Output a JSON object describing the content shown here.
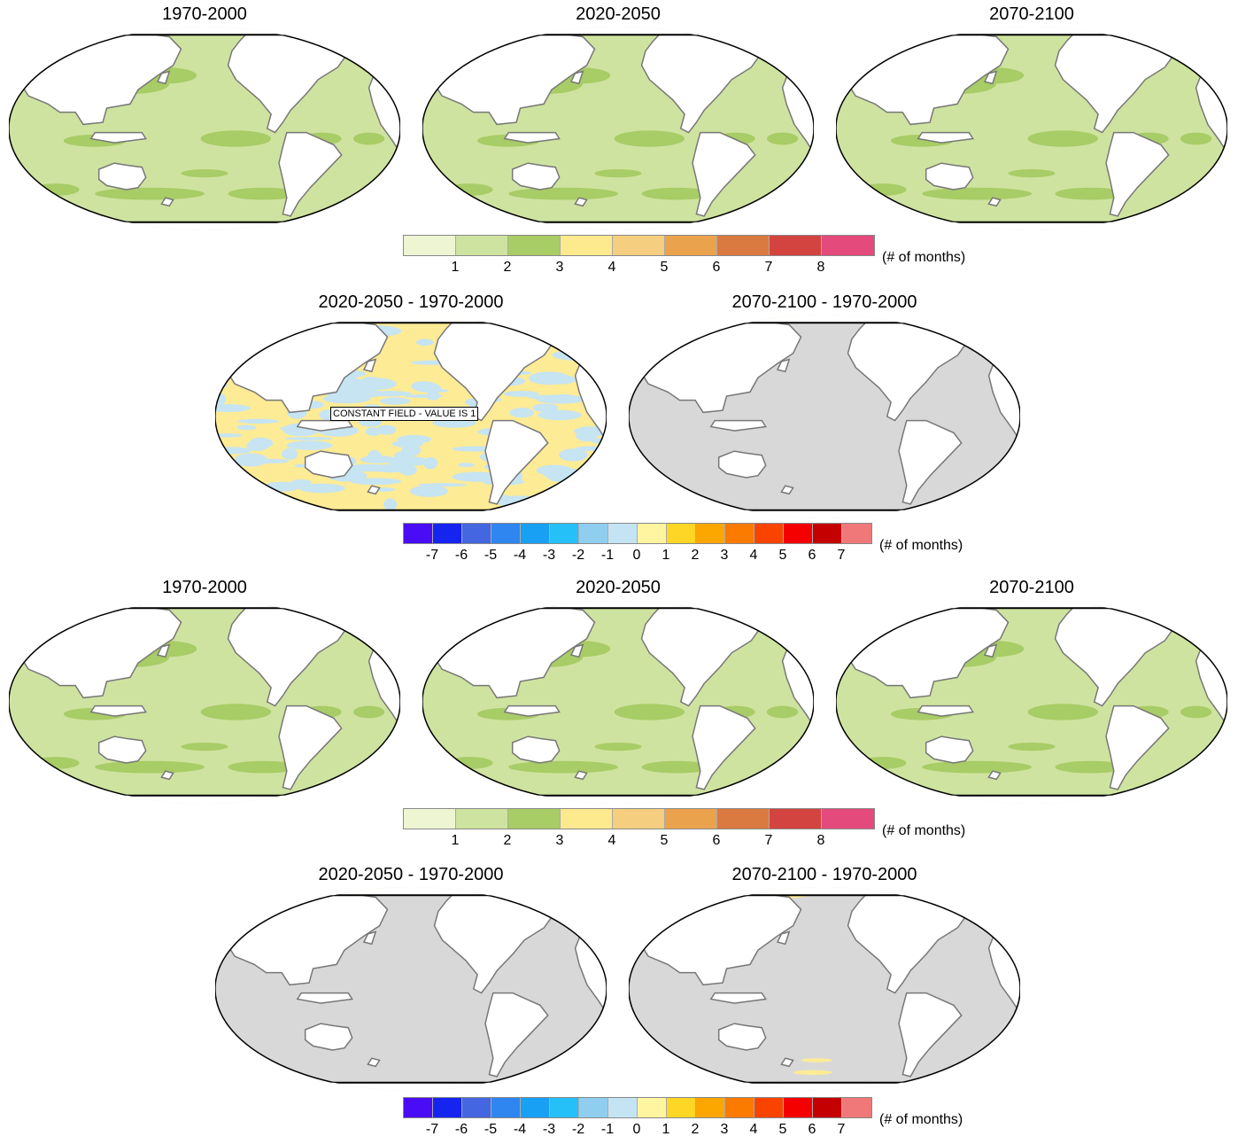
{
  "panels": [
    {
      "title": "1970-2000",
      "kind": "abs"
    },
    {
      "title": "2020-2050",
      "kind": "abs"
    },
    {
      "title": "2070-2100",
      "kind": "abs"
    },
    {
      "title": "2020-2050 - 1970-2000",
      "kind": "diff_mixed",
      "annotation": "CONSTANT FIELD - VALUE IS 1"
    },
    {
      "title": "2070-2100 - 1970-2000",
      "kind": "diff_gray"
    },
    {
      "title": "1970-2000",
      "kind": "abs"
    },
    {
      "title": "2020-2050",
      "kind": "abs"
    },
    {
      "title": "2070-2100",
      "kind": "abs"
    },
    {
      "title": "2020-2050 - 1970-2000",
      "kind": "diff_gray"
    },
    {
      "title": "2070-2100 - 1970-2000",
      "kind": "diff_gray_arctic"
    }
  ],
  "abs_colorbar": {
    "units": "(# of months)",
    "labels": [
      "1",
      "2",
      "3",
      "4",
      "5",
      "6",
      "7",
      "8"
    ],
    "colors": [
      "#eef5d3",
      "#cfe3a0",
      "#a8cc66",
      "#fde98e",
      "#f5cf7f",
      "#eba24c",
      "#db7a40",
      "#d34440",
      "#e44a7c"
    ]
  },
  "diff_colorbar": {
    "units": "(# of months)",
    "labels": [
      "-7",
      "-6",
      "-5",
      "-4",
      "-3",
      "-2",
      "-1",
      "0",
      "1",
      "2",
      "3",
      "4",
      "5",
      "6",
      "7"
    ],
    "colors": [
      "#4a0cf4",
      "#1624f0",
      "#4466e0",
      "#2f86f0",
      "#18a0f4",
      "#26c0f8",
      "#90cef0",
      "#c4e4f4",
      "#fff5a0",
      "#fdd626",
      "#fca600",
      "#fb7a00",
      "#f94400",
      "#f40000",
      "#c40000",
      "#f07878"
    ]
  },
  "colors": {
    "abs_ocean": "#cfe3a0",
    "abs_patch": "#a8cc66",
    "diff_yellow": "#fdeb96",
    "diff_blue": "#c6e4f2",
    "diff_gray": "#d8d8d8",
    "land": "#ffffff",
    "coast": "#777777"
  }
}
